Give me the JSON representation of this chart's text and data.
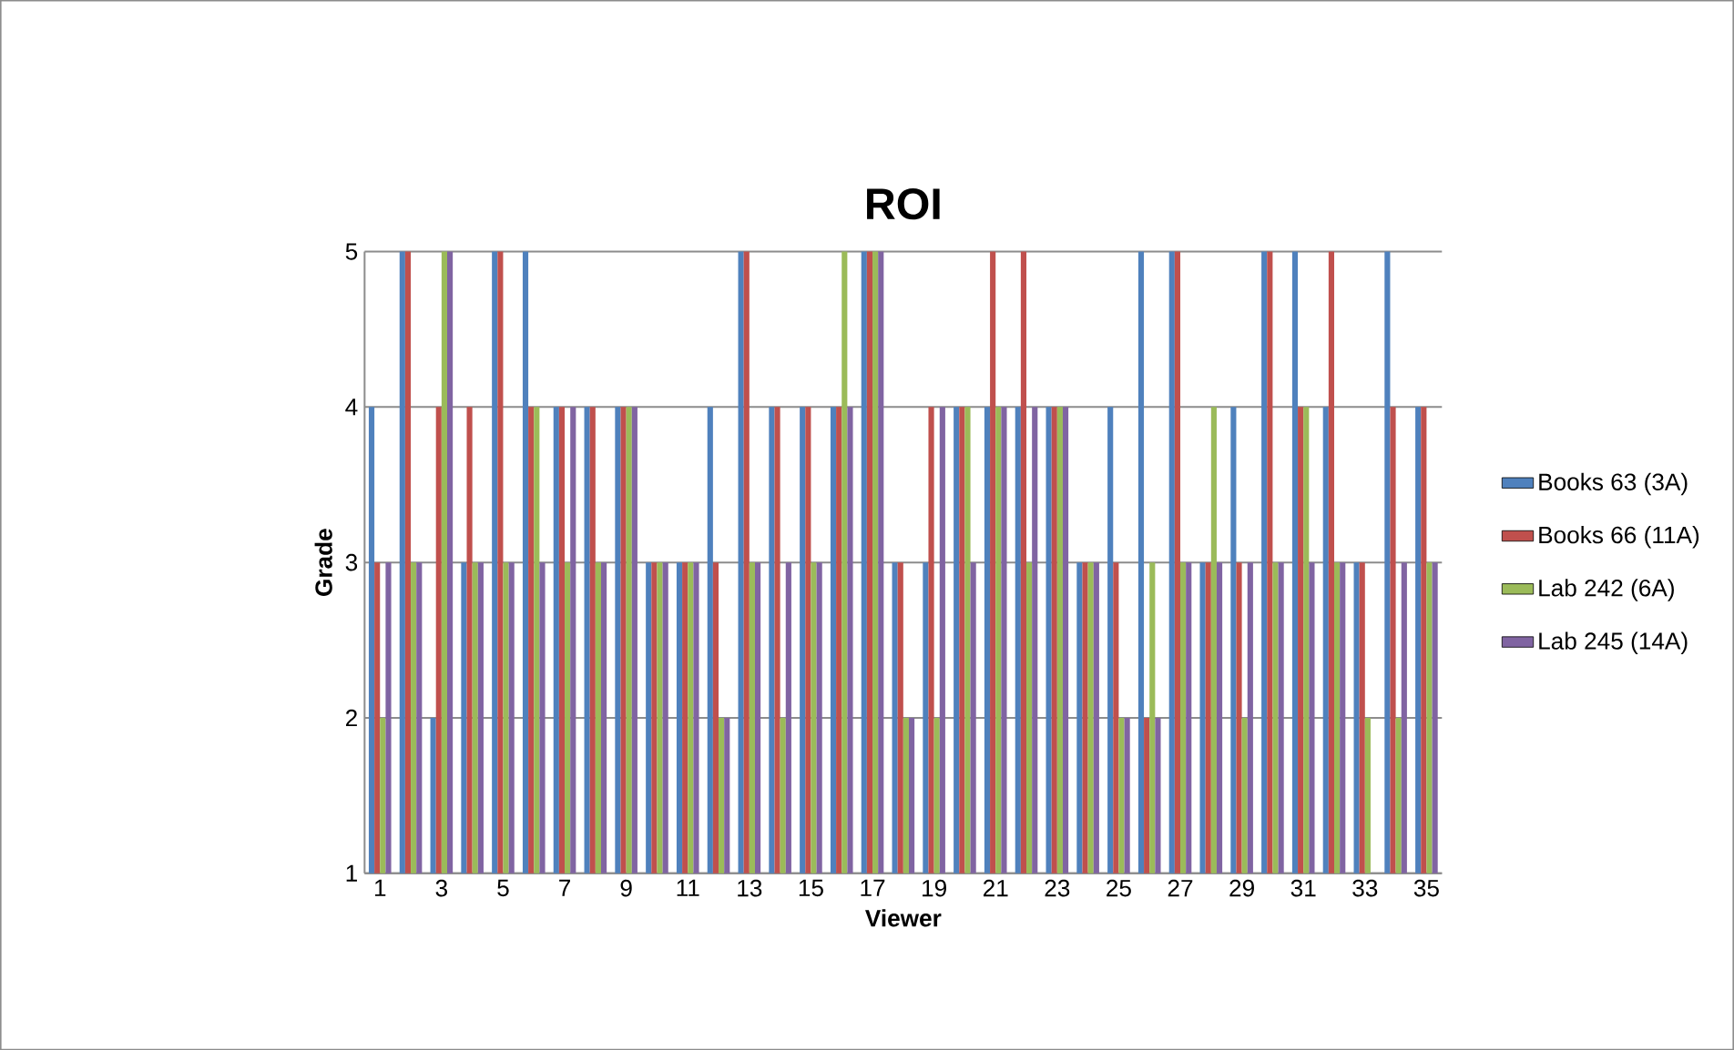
{
  "chart_data": {
    "type": "bar",
    "title": "ROI",
    "xlabel": "Viewer",
    "ylabel": "Grade",
    "categories": [
      "1",
      null,
      "3",
      null,
      "5",
      null,
      "7",
      null,
      "9",
      null,
      "11",
      null,
      "13",
      null,
      "15",
      null,
      "17",
      null,
      "19",
      null,
      "21",
      null,
      "23",
      null,
      "25",
      null,
      "27",
      null,
      "29",
      null,
      "31",
      null,
      "33",
      null,
      "35"
    ],
    "series": [
      {
        "name": "Books 63 (3A)",
        "color": "#4f81bd",
        "values": [
          4,
          5,
          2,
          3,
          5,
          5,
          4,
          4,
          4,
          3,
          3,
          4,
          5,
          4,
          4,
          4,
          5,
          3,
          3,
          4,
          4,
          4,
          4,
          3,
          4,
          5,
          5,
          3,
          4,
          5,
          5,
          4,
          3,
          5,
          4
        ]
      },
      {
        "name": "Books 66 (11A)",
        "color": "#c0504d",
        "values": [
          3,
          5,
          4,
          4,
          5,
          4,
          4,
          4,
          4,
          3,
          3,
          3,
          5,
          4,
          4,
          4,
          5,
          3,
          4,
          4,
          5,
          5,
          4,
          3,
          3,
          2,
          5,
          3,
          3,
          5,
          4,
          5,
          3,
          4,
          4
        ]
      },
      {
        "name": "Lab 242 (6A)",
        "color": "#9bbb59",
        "values": [
          2,
          3,
          5,
          3,
          3,
          4,
          3,
          3,
          4,
          3,
          3,
          2,
          3,
          2,
          3,
          5,
          5,
          2,
          2,
          4,
          4,
          3,
          4,
          3,
          2,
          3,
          3,
          4,
          2,
          3,
          4,
          3,
          2,
          2,
          3
        ]
      },
      {
        "name": "Lab 245 (14A)",
        "color": "#8064a2",
        "values": [
          3,
          3,
          5,
          3,
          3,
          3,
          4,
          3,
          4,
          3,
          3,
          2,
          3,
          3,
          3,
          4,
          5,
          2,
          4,
          3,
          4,
          4,
          4,
          3,
          2,
          2,
          3,
          3,
          3,
          3,
          3,
          3,
          1,
          3,
          3
        ]
      }
    ],
    "ylim": [
      1,
      5
    ],
    "yticks": [
      1,
      2,
      3,
      4,
      5
    ],
    "grid": "y",
    "legend": "right"
  }
}
